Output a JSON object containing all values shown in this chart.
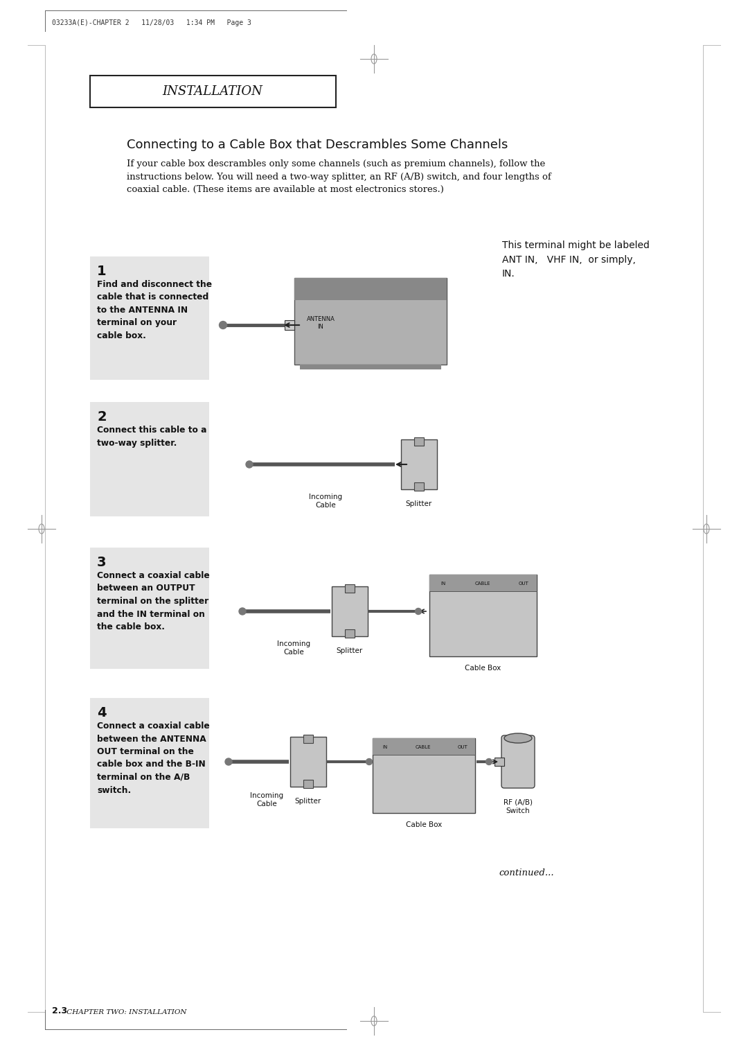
{
  "bg_color": "#ffffff",
  "page_header": "03233A(E)-CHAPTER 2   11/28/03   1:34 PM   Page 3",
  "section_title": "INSTALLATION",
  "main_title": "Connecting to a Cable Box that Descrambles Some Channels",
  "intro_text": "If your cable box descrambles only some channels (such as premium channels), follow the\ninstructions below. You will need a two-way splitter, an RF (A/B) switch, and four lengths of\ncoaxial cable. (These items are available at most electronics stores.)",
  "side_note": "This terminal might be labeled\nANT IN,   VHF IN,  or simply,\nIN.",
  "step1_num": "1",
  "step1_text": "Find and disconnect the\ncable that is connected\nto the ANTENNA IN\nterminal on your\ncable box.",
  "step2_num": "2",
  "step2_text": "Connect this cable to a\ntwo-way splitter.",
  "step3_num": "3",
  "step3_text": "Connect a coaxial cable\nbetween an OUTPUT\nterminal on the splitter\nand the IN terminal on\nthe cable box.",
  "step4_num": "4",
  "step4_text": "Connect a coaxial cable\nbetween the ANTENNA\nOUT terminal on the\ncable box and the B-IN\nterminal on the A/B\nswitch.",
  "continued": "continued...",
  "footer_num": "2.3",
  "footer_text": " CHAPTER TWO: INSTALLATION"
}
